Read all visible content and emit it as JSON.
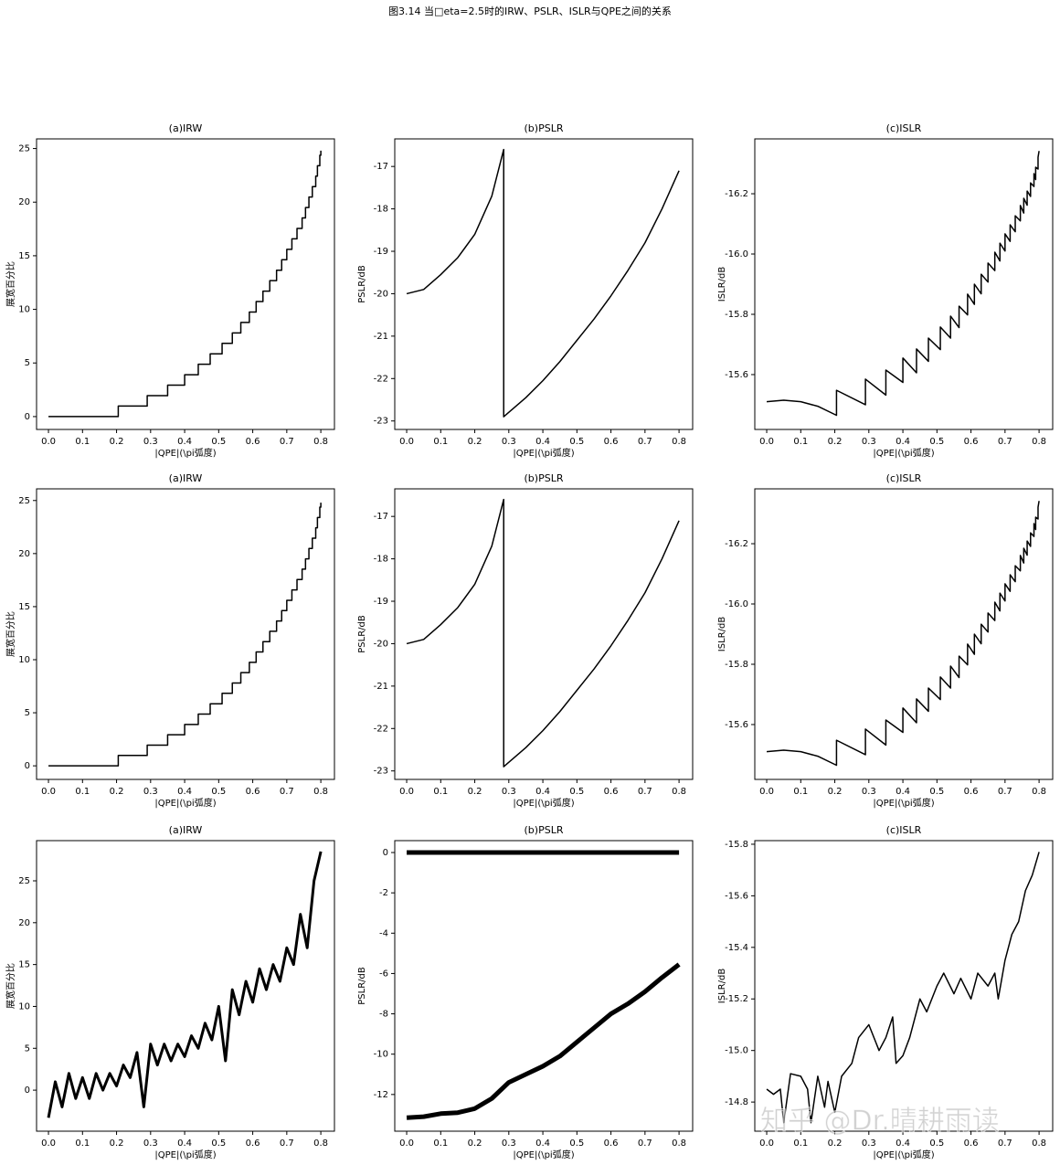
{
  "title": "图3.14 当□eta=2.5时的IRW、PSLR、ISLR与QPE之间的关系",
  "watermark": "知乎 @Dr.晴耕雨读",
  "chart_data": [
    {
      "type": "line",
      "title": "(a)IRW",
      "xlabel": "|QPE|(\\pi弧度)",
      "ylabel": "展宽百分比",
      "xlim": [
        -0.035,
        0.84
      ],
      "xticks": [
        {
          "value": 0,
          "label": "0.0"
        },
        0.1,
        0.2,
        0.3,
        0.4,
        0.5,
        0.6,
        0.7,
        0.8
      ],
      "ylim": [
        -1.2,
        25.9
      ],
      "yticks": [
        0,
        5,
        10,
        15,
        20,
        25
      ],
      "series": [
        {
          "color": "#000000",
          "linewidth": 1.5,
          "x": [
            0,
            0.205,
            0.205,
            0.29,
            0.29,
            0.35,
            0.35,
            0.4,
            0.4,
            0.44,
            0.44,
            0.475,
            0.475,
            0.51,
            0.51,
            0.54,
            0.54,
            0.565,
            0.565,
            0.59,
            0.59,
            0.61,
            0.61,
            0.63,
            0.63,
            0.65,
            0.65,
            0.67,
            0.67,
            0.685,
            0.685,
            0.7,
            0.7,
            0.715,
            0.715,
            0.73,
            0.73,
            0.745,
            0.745,
            0.755,
            0.755,
            0.765,
            0.765,
            0.775,
            0.775,
            0.785,
            0.785,
            0.79,
            0.79,
            0.797,
            0.797,
            0.8,
            0.8
          ],
          "values": [
            0,
            0,
            0.98,
            0.98,
            1.95,
            1.95,
            2.93,
            2.93,
            3.9,
            3.9,
            4.88,
            4.88,
            5.85,
            5.85,
            6.83,
            6.83,
            7.8,
            7.8,
            8.78,
            8.78,
            9.75,
            9.75,
            10.73,
            10.73,
            11.7,
            11.7,
            12.68,
            12.68,
            13.65,
            13.65,
            14.63,
            14.63,
            15.6,
            15.6,
            16.58,
            16.58,
            17.55,
            17.55,
            18.53,
            18.53,
            19.5,
            19.5,
            20.48,
            20.48,
            21.45,
            21.45,
            22.43,
            22.43,
            23.4,
            23.4,
            24.38,
            24.38,
            24.8
          ]
        }
      ]
    },
    {
      "type": "line",
      "title": "(b)PSLR",
      "xlabel": "|QPE|(\\pi弧度)",
      "ylabel": "PSLR/dB",
      "xlim": [
        -0.035,
        0.84
      ],
      "xticks": [
        {
          "value": 0,
          "label": "0.0"
        },
        0.1,
        0.2,
        0.3,
        0.4,
        0.5,
        0.6,
        0.7,
        0.8
      ],
      "ylim": [
        -23.2,
        -16.35
      ],
      "yticks": [
        -23,
        -22,
        -21,
        -20,
        -19,
        -18,
        -17
      ],
      "series": [
        {
          "color": "#000000",
          "linewidth": 1.5,
          "x": [
            0,
            0.05,
            0.1,
            0.15,
            0.2,
            0.25,
            0.285,
            0.285,
            0.35,
            0.4,
            0.45,
            0.5,
            0.55,
            0.6,
            0.65,
            0.7,
            0.75,
            0.8
          ],
          "values": [
            -20,
            -19.9,
            -19.55,
            -19.15,
            -18.6,
            -17.7,
            -16.6,
            -22.9,
            -22.45,
            -22.05,
            -21.6,
            -21.1,
            -20.6,
            -20.05,
            -19.45,
            -18.8,
            -18.0,
            -17.1
          ]
        }
      ]
    },
    {
      "type": "line",
      "title": "(c)ISLR",
      "xlabel": "|QPE|(\\pi弧度)",
      "ylabel": "ISLR/dB",
      "xlim": [
        -0.035,
        0.84
      ],
      "xticks": [
        {
          "value": 0,
          "label": "0.0"
        },
        0.1,
        0.2,
        0.3,
        0.4,
        0.5,
        0.6,
        0.7,
        0.8
      ],
      "ylim": [
        -15.418,
        -16.382
      ],
      "yticks": [
        -16.2,
        {
          "value": -16,
          "label": "-16.0"
        },
        -15.8,
        -15.6
      ],
      "series": [
        {
          "color": "#000000",
          "linewidth": 1.5,
          "x": [
            0,
            0.05,
            0.1,
            0.15,
            0.205,
            0.205,
            0.29,
            0.29,
            0.35,
            0.35,
            0.4,
            0.4,
            0.44,
            0.44,
            0.475,
            0.475,
            0.51,
            0.51,
            0.54,
            0.54,
            0.565,
            0.565,
            0.59,
            0.59,
            0.61,
            0.61,
            0.63,
            0.63,
            0.65,
            0.65,
            0.67,
            0.67,
            0.685,
            0.685,
            0.7,
            0.7,
            0.715,
            0.715,
            0.73,
            0.73,
            0.745,
            0.745,
            0.755,
            0.755,
            0.765,
            0.765,
            0.775,
            0.775,
            0.785,
            0.785,
            0.79,
            0.79,
            0.797,
            0.797,
            0.8
          ],
          "values": [
            -15.51,
            -15.515,
            -15.51,
            -15.495,
            -15.465,
            -15.548,
            -15.5,
            -15.585,
            -15.532,
            -15.615,
            -15.574,
            -15.655,
            -15.606,
            -15.685,
            -15.644,
            -15.721,
            -15.683,
            -15.758,
            -15.721,
            -15.794,
            -15.756,
            -15.827,
            -15.798,
            -15.867,
            -15.833,
            -15.9,
            -15.868,
            -15.933,
            -15.907,
            -15.97,
            -15.945,
            -16.006,
            -15.977,
            -16.036,
            -16.01,
            -16.067,
            -16.042,
            -16.097,
            -16.074,
            -16.127,
            -16.11,
            -16.161,
            -16.136,
            -16.185,
            -16.162,
            -16.209,
            -16.191,
            -16.236,
            -16.224,
            -16.267,
            -16.247,
            -16.288,
            -16.282,
            -16.321,
            -16.342
          ]
        }
      ]
    },
    {
      "type": "line",
      "title": "(a)IRW",
      "xlabel": "|QPE|(\\pi弧度)",
      "ylabel": "展宽百分比",
      "xlim": [
        -0.035,
        0.84
      ],
      "xticks": [
        {
          "value": 0,
          "label": "0.0"
        },
        0.1,
        0.2,
        0.3,
        0.4,
        0.5,
        0.6,
        0.7,
        0.8
      ],
      "ylim": [
        -1.28,
        26.1
      ],
      "yticks": [
        0,
        5,
        10,
        15,
        20,
        25
      ],
      "series": [
        {
          "color": "#000000",
          "linewidth": 1.5,
          "x": [
            0,
            0.205,
            0.205,
            0.29,
            0.29,
            0.35,
            0.35,
            0.4,
            0.4,
            0.44,
            0.44,
            0.475,
            0.475,
            0.51,
            0.51,
            0.54,
            0.54,
            0.565,
            0.565,
            0.59,
            0.59,
            0.61,
            0.61,
            0.63,
            0.63,
            0.65,
            0.65,
            0.67,
            0.67,
            0.685,
            0.685,
            0.7,
            0.7,
            0.715,
            0.715,
            0.73,
            0.73,
            0.745,
            0.745,
            0.755,
            0.755,
            0.765,
            0.765,
            0.775,
            0.775,
            0.785,
            0.785,
            0.79,
            0.79,
            0.797,
            0.797,
            0.8,
            0.8
          ],
          "values": [
            0,
            0,
            0.98,
            0.98,
            1.95,
            1.95,
            2.93,
            2.93,
            3.9,
            3.9,
            4.88,
            4.88,
            5.85,
            5.85,
            6.83,
            6.83,
            7.8,
            7.8,
            8.78,
            8.78,
            9.75,
            9.75,
            10.73,
            10.73,
            11.7,
            11.7,
            12.68,
            12.68,
            13.65,
            13.65,
            14.63,
            14.63,
            15.6,
            15.6,
            16.58,
            16.58,
            17.55,
            17.55,
            18.53,
            18.53,
            19.5,
            19.5,
            20.48,
            20.48,
            21.45,
            21.45,
            22.43,
            22.43,
            23.4,
            23.4,
            24.38,
            24.38,
            24.8
          ]
        }
      ]
    },
    {
      "type": "line",
      "title": "(b)PSLR",
      "xlabel": "|QPE|(\\pi弧度)",
      "ylabel": "PSLR/dB",
      "xlim": [
        -0.035,
        0.84
      ],
      "xticks": [
        {
          "value": 0,
          "label": "0.0"
        },
        0.1,
        0.2,
        0.3,
        0.4,
        0.5,
        0.6,
        0.7,
        0.8
      ],
      "ylim": [
        -23.2,
        -16.35
      ],
      "yticks": [
        -23,
        -22,
        -21,
        -20,
        -19,
        -18,
        -17
      ],
      "series": [
        {
          "color": "#000000",
          "linewidth": 1.5,
          "x": [
            0,
            0.05,
            0.1,
            0.15,
            0.2,
            0.25,
            0.285,
            0.285,
            0.35,
            0.4,
            0.45,
            0.5,
            0.55,
            0.6,
            0.65,
            0.7,
            0.75,
            0.8
          ],
          "values": [
            -20,
            -19.9,
            -19.55,
            -19.15,
            -18.6,
            -17.7,
            -16.6,
            -22.9,
            -22.45,
            -22.05,
            -21.6,
            -21.1,
            -20.6,
            -20.05,
            -19.45,
            -18.8,
            -18.0,
            -17.1
          ]
        }
      ]
    },
    {
      "type": "line",
      "title": "(c)ISLR",
      "xlabel": "|QPE|(\\pi弧度)",
      "ylabel": "ISLR/dB",
      "xlim": [
        -0.035,
        0.84
      ],
      "xticks": [
        {
          "value": 0,
          "label": "0.0"
        },
        0.1,
        0.2,
        0.3,
        0.4,
        0.5,
        0.6,
        0.7,
        0.8
      ],
      "ylim": [
        -15.418,
        -16.382
      ],
      "yticks": [
        -16.2,
        {
          "value": -16,
          "label": "-16.0"
        },
        -15.8,
        -15.6
      ],
      "series": [
        {
          "color": "#000000",
          "linewidth": 1.5,
          "x": [
            0,
            0.05,
            0.1,
            0.15,
            0.205,
            0.205,
            0.29,
            0.29,
            0.35,
            0.35,
            0.4,
            0.4,
            0.44,
            0.44,
            0.475,
            0.475,
            0.51,
            0.51,
            0.54,
            0.54,
            0.565,
            0.565,
            0.59,
            0.59,
            0.61,
            0.61,
            0.63,
            0.63,
            0.65,
            0.65,
            0.67,
            0.67,
            0.685,
            0.685,
            0.7,
            0.7,
            0.715,
            0.715,
            0.73,
            0.73,
            0.745,
            0.745,
            0.755,
            0.755,
            0.765,
            0.765,
            0.775,
            0.775,
            0.785,
            0.785,
            0.79,
            0.79,
            0.797,
            0.797,
            0.8
          ],
          "values": [
            -15.51,
            -15.515,
            -15.51,
            -15.495,
            -15.465,
            -15.548,
            -15.5,
            -15.585,
            -15.532,
            -15.615,
            -15.574,
            -15.655,
            -15.606,
            -15.685,
            -15.644,
            -15.721,
            -15.683,
            -15.758,
            -15.721,
            -15.794,
            -15.756,
            -15.827,
            -15.798,
            -15.867,
            -15.833,
            -15.9,
            -15.868,
            -15.933,
            -15.907,
            -15.97,
            -15.945,
            -16.006,
            -15.977,
            -16.036,
            -16.01,
            -16.067,
            -16.042,
            -16.097,
            -16.074,
            -16.127,
            -16.11,
            -16.161,
            -16.136,
            -16.185,
            -16.162,
            -16.209,
            -16.191,
            -16.236,
            -16.224,
            -16.267,
            -16.247,
            -16.288,
            -16.282,
            -16.321,
            -16.342
          ]
        }
      ]
    },
    {
      "type": "line",
      "title": "(a)IRW",
      "xlabel": "|QPE|(\\pi弧度)",
      "ylabel": "展宽百分比",
      "xlim": [
        -0.035,
        0.84
      ],
      "xticks": [
        {
          "value": 0,
          "label": "0.0"
        },
        0.1,
        0.2,
        0.3,
        0.4,
        0.5,
        0.6,
        0.7,
        0.8
      ],
      "ylim": [
        -4.9,
        29.8
      ],
      "yticks": [
        0,
        5,
        10,
        15,
        20,
        25
      ],
      "series": [
        {
          "color": "#000000",
          "linewidth": 3,
          "x": [
            0,
            0.02,
            0.04,
            0.06,
            0.08,
            0.1,
            0.12,
            0.14,
            0.16,
            0.18,
            0.2,
            0.22,
            0.24,
            0.26,
            0.28,
            0.3,
            0.32,
            0.34,
            0.36,
            0.38,
            0.4,
            0.42,
            0.44,
            0.46,
            0.48,
            0.5,
            0.52,
            0.54,
            0.56,
            0.58,
            0.6,
            0.62,
            0.64,
            0.66,
            0.68,
            0.7,
            0.72,
            0.74,
            0.76,
            0.78,
            0.8
          ],
          "values": [
            -3.3,
            1,
            -2,
            2,
            -1,
            1.5,
            -1,
            2,
            0,
            2,
            0.5,
            3,
            1.5,
            4.5,
            -2,
            5.5,
            3,
            5.5,
            3.5,
            5.5,
            4,
            6.5,
            5,
            8,
            6,
            10,
            3.5,
            12,
            9,
            13,
            10.5,
            14.5,
            12,
            15,
            13,
            17,
            15,
            21,
            17,
            25,
            28.5
          ]
        }
      ]
    },
    {
      "type": "line",
      "title": "(b)PSLR",
      "xlabel": "|QPE|(\\pi弧度)",
      "ylabel": "PSLR/dB",
      "xlim": [
        -0.035,
        0.84
      ],
      "xticks": [
        {
          "value": 0,
          "label": "0.0"
        },
        0.1,
        0.2,
        0.3,
        0.4,
        0.5,
        0.6,
        0.7,
        0.8
      ],
      "ylim": [
        -13.82,
        0.59
      ],
      "yticks": [
        -12,
        -10,
        -8,
        -6,
        -4,
        -2,
        0
      ],
      "series": [
        {
          "color": "#000000",
          "linewidth": 5,
          "x": [
            0,
            0.8
          ],
          "values": [
            0,
            0
          ]
        },
        {
          "color": "#000000",
          "linewidth": 5,
          "x": [
            0,
            0.05,
            0.1,
            0.15,
            0.2,
            0.25,
            0.3,
            0.35,
            0.4,
            0.45,
            0.5,
            0.55,
            0.6,
            0.65,
            0.7,
            0.75,
            0.8
          ],
          "values": [
            -13.15,
            -13.1,
            -12.95,
            -12.9,
            -12.7,
            -12.2,
            -11.4,
            -11.0,
            -10.6,
            -10.1,
            -9.4,
            -8.7,
            -8.0,
            -7.5,
            -6.9,
            -6.2,
            -5.55
          ]
        }
      ]
    },
    {
      "type": "line",
      "title": "(c)ISLR",
      "xlabel": "|QPE|(\\pi弧度)",
      "ylabel": "ISLR/dB",
      "xlim": [
        -0.035,
        0.84
      ],
      "xticks": [
        {
          "value": 0,
          "label": "0.0"
        },
        0.1,
        0.2,
        0.3,
        0.4,
        0.5,
        0.6,
        0.7,
        0.8
      ],
      "ylim": [
        -14.687,
        -15.814
      ],
      "yticks": [
        -15.8,
        -15.6,
        -15.4,
        -15.2,
        {
          "value": -15,
          "label": "-15.0"
        },
        -14.8
      ],
      "series": [
        {
          "color": "#000000",
          "linewidth": 1.5,
          "x": [
            0,
            0.02,
            0.04,
            0.05,
            0.07,
            0.1,
            0.12,
            0.13,
            0.15,
            0.17,
            0.18,
            0.2,
            0.22,
            0.25,
            0.27,
            0.3,
            0.33,
            0.35,
            0.37,
            0.38,
            0.4,
            0.42,
            0.45,
            0.47,
            0.5,
            0.52,
            0.55,
            0.57,
            0.6,
            0.62,
            0.65,
            0.67,
            0.68,
            0.7,
            0.72,
            0.74,
            0.76,
            0.78,
            0.8
          ],
          "values": [
            -14.85,
            -14.83,
            -14.85,
            -14.72,
            -14.91,
            -14.9,
            -14.85,
            -14.72,
            -14.9,
            -14.78,
            -14.88,
            -14.76,
            -14.9,
            -14.95,
            -15.05,
            -15.1,
            -15.0,
            -15.05,
            -15.13,
            -14.95,
            -14.98,
            -15.05,
            -15.2,
            -15.15,
            -15.25,
            -15.3,
            -15.22,
            -15.28,
            -15.2,
            -15.3,
            -15.25,
            -15.3,
            -15.2,
            -15.35,
            -15.45,
            -15.5,
            -15.62,
            -15.68,
            -15.77
          ]
        }
      ]
    }
  ]
}
